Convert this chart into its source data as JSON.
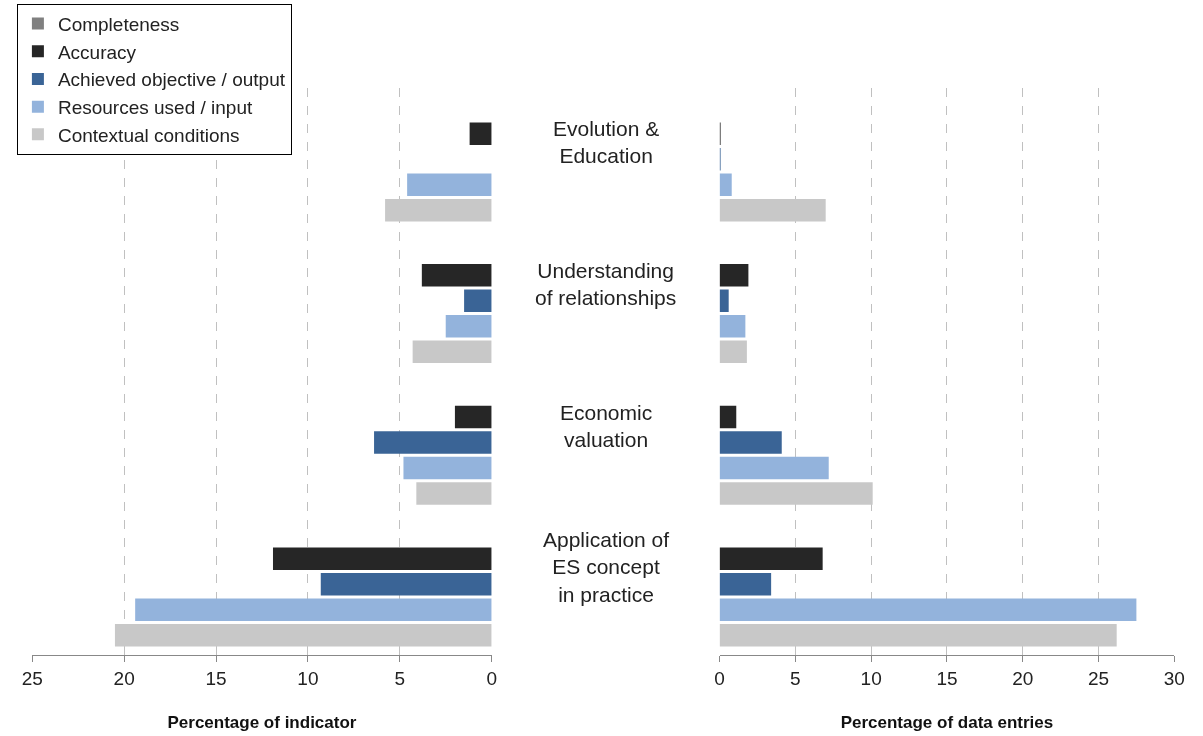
{
  "chart_data": [
    {
      "type": "bar",
      "orientation": "horizontal",
      "categories": [
        "Evolution &\nEducation",
        "Understanding\nof relationships",
        "Economic\nvaluation",
        "Application of\nES concept\nin practice"
      ],
      "series": [
        {
          "name": "Completeness",
          "color": "#808080",
          "values": [
            null,
            null,
            null,
            null
          ]
        },
        {
          "name": "Accuracy",
          "color": "#262626",
          "values": [
            1.2,
            3.8,
            2.0,
            11.9
          ]
        },
        {
          "name": "Achieved objective / output",
          "color": "#3a6496",
          "values": [
            null,
            1.5,
            6.4,
            9.3
          ]
        },
        {
          "name": "Resources used / input",
          "color": "#93b3dc",
          "values": [
            4.6,
            2.5,
            4.8,
            19.4
          ]
        },
        {
          "name": "Contextual conditions",
          "color": "#c8c8c8",
          "values": [
            5.8,
            4.3,
            4.1,
            20.5
          ]
        }
      ],
      "xlim": [
        25,
        0
      ],
      "xticks": [
        25,
        20,
        15,
        10,
        5,
        0
      ],
      "xlabel": "Percentage of indicator",
      "grid": "x",
      "legend": "top left"
    },
    {
      "type": "bar",
      "orientation": "horizontal",
      "categories": [
        "Evolution &\nEducation",
        "Understanding\nof relationships",
        "Economic\nvaluation",
        "Application of\nES concept\nin practice"
      ],
      "series": [
        {
          "color": "#808080",
          "values": [
            null,
            null,
            null,
            null
          ]
        },
        {
          "color": "#262626",
          "values": [
            0.05,
            1.9,
            1.1,
            6.8
          ]
        },
        {
          "color": "#3a6496",
          "values": [
            0.05,
            0.6,
            4.1,
            3.4
          ]
        },
        {
          "color": "#93b3dc",
          "values": [
            0.8,
            1.7,
            7.2,
            27.5
          ]
        },
        {
          "color": "#c8c8c8",
          "values": [
            7.0,
            1.8,
            10.1,
            26.2
          ]
        }
      ],
      "xlim": [
        0,
        30
      ],
      "xticks": [
        0,
        5,
        10,
        15,
        20,
        25,
        30
      ],
      "xlabel": "Percentage of data entries",
      "grid": "x",
      "tick_labels": "x"
    }
  ]
}
